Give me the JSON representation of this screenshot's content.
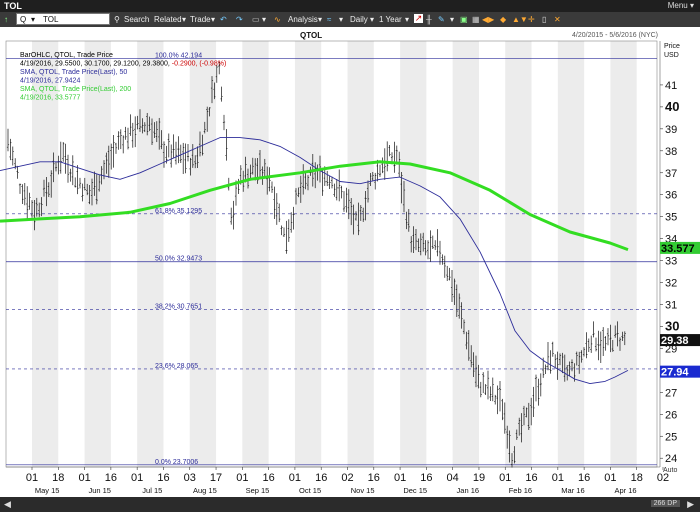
{
  "window": {
    "title": "TOL",
    "menu_label": "Menu"
  },
  "toolbar": {
    "symbol_prefix": "Q",
    "symbol": "TOL",
    "search": "Search",
    "related": "Related",
    "trade": "Trade",
    "analysis": "Analysis",
    "interval": "Daily",
    "range": "1 Year"
  },
  "chart_data": {
    "type": "ohlc",
    "symbol": "QTOL",
    "date_range": "4/20/2015 - 5/6/2016 (NYC)",
    "price_axis_label": "Price\nUSD",
    "ylim": [
      23.6,
      43.0
    ],
    "y_ticks": [
      24,
      25,
      26,
      27,
      28,
      29,
      30,
      31,
      32,
      33,
      34,
      35,
      36,
      37,
      38,
      39,
      40,
      41
    ],
    "y_ticks_major": [
      30,
      40
    ],
    "y_auto_label": "Auto",
    "day_ticks": [
      "01",
      "18",
      "01",
      "16",
      "01",
      "16",
      "03",
      "17",
      "01",
      "16",
      "01",
      "16",
      "02",
      "16",
      "01",
      "16",
      "04",
      "19",
      "01",
      "16",
      "01",
      "16",
      "01",
      "18",
      "02"
    ],
    "month_labels": [
      "May 15",
      "Jun 15",
      "Jul 15",
      "Aug 15",
      "Sep 15",
      "Oct 15",
      "Nov 15",
      "Dec 15",
      "Jan 16",
      "Feb 16",
      "Mar 16",
      "Apr 16"
    ],
    "legend": [
      {
        "text": "BarOHLC, QTOL, Trade Price",
        "color": "#000000"
      },
      {
        "text": "4/19/2016, 29.5500, 30.1700, 29.1200, 29.3800,",
        "color": "#000000",
        "extra": " -0.2900, (-0.98%)",
        "extra_color": "#cc0000"
      },
      {
        "text": "SMA, QTOL, Trade Price(Last), 50",
        "color": "#2d2d9a"
      },
      {
        "text": "4/19/2016, 27.9424",
        "color": "#2d2d9a"
      },
      {
        "text": "SMA, QTOL, Trade Price(Last), 200",
        "color": "#33cc33"
      },
      {
        "text": "4/19/2016, 33.5777",
        "color": "#33cc33"
      }
    ],
    "fib_levels": [
      {
        "pct": "100.0%",
        "value": 42.194,
        "label": "42.194",
        "style": "solid"
      },
      {
        "pct": "61.8%",
        "value": 35.1295,
        "label": "35.1295",
        "style": "dashed"
      },
      {
        "pct": "50.0%",
        "value": 32.9473,
        "label": "32.9473",
        "style": "solid"
      },
      {
        "pct": "38.2%",
        "value": 30.7651,
        "label": "30.7651",
        "style": "dashed"
      },
      {
        "pct": "23.6%",
        "value": 28.065,
        "label": "28.065",
        "style": "dashed"
      },
      {
        "pct": "0.0%",
        "value": 23.7006,
        "label": "23.7006",
        "style": "solid"
      }
    ],
    "last_price_tags": [
      {
        "label": "33.577",
        "value": 33.5777,
        "bg": "#33cc33",
        "fg": "#000000"
      },
      {
        "label": "29.38",
        "value": 29.38,
        "bg": "#111111",
        "fg": "#ffffff"
      },
      {
        "label": "27.94",
        "value": 27.9424,
        "bg": "#1a2ad0",
        "fg": "#ffffff"
      }
    ],
    "sma200": {
      "color": "#33dd22",
      "points": [
        [
          0,
          34.8
        ],
        [
          40,
          34.9
        ],
        [
          80,
          35.0
        ],
        [
          130,
          35.2
        ],
        [
          170,
          35.6
        ],
        [
          210,
          36.2
        ],
        [
          250,
          36.7
        ],
        [
          300,
          37.0
        ],
        [
          340,
          37.3
        ],
        [
          380,
          37.5
        ],
        [
          410,
          37.4
        ],
        [
          450,
          37.0
        ],
        [
          490,
          36.2
        ],
        [
          530,
          35.1
        ],
        [
          570,
          34.3
        ],
        [
          610,
          33.8
        ],
        [
          628,
          33.5
        ]
      ]
    },
    "sma50": {
      "color": "#2d2d9a",
      "points": [
        [
          0,
          37.1
        ],
        [
          20,
          37.3
        ],
        [
          40,
          37.5
        ],
        [
          60,
          37.5
        ],
        [
          80,
          37.2
        ],
        [
          100,
          36.9
        ],
        [
          120,
          36.7
        ],
        [
          140,
          37.0
        ],
        [
          160,
          37.4
        ],
        [
          180,
          37.8
        ],
        [
          200,
          38.2
        ],
        [
          220,
          38.6
        ],
        [
          240,
          38.6
        ],
        [
          260,
          38.5
        ],
        [
          280,
          38.2
        ],
        [
          300,
          37.7
        ],
        [
          320,
          37.1
        ],
        [
          340,
          36.6
        ],
        [
          360,
          36.5
        ],
        [
          380,
          36.7
        ],
        [
          400,
          36.8
        ],
        [
          420,
          36.4
        ],
        [
          440,
          35.9
        ],
        [
          460,
          34.9
        ],
        [
          480,
          33.4
        ],
        [
          500,
          31.5
        ],
        [
          515,
          29.8
        ],
        [
          530,
          28.9
        ],
        [
          545,
          28.4
        ],
        [
          560,
          28.0
        ],
        [
          575,
          27.6
        ],
        [
          590,
          27.4
        ],
        [
          605,
          27.5
        ],
        [
          615,
          27.7
        ],
        [
          628,
          28.0
        ]
      ]
    },
    "price_path": [
      [
        8,
        38.5
      ],
      [
        20,
        36.5
      ],
      [
        35,
        35.2
      ],
      [
        50,
        36.5
      ],
      [
        62,
        38.0
      ],
      [
        75,
        36.8
      ],
      [
        90,
        36.0
      ],
      [
        105,
        37.2
      ],
      [
        120,
        38.5
      ],
      [
        135,
        39.0
      ],
      [
        150,
        39.3
      ],
      [
        165,
        38.0
      ],
      [
        180,
        37.8
      ],
      [
        195,
        37.5
      ],
      [
        205,
        39.0
      ],
      [
        215,
        41.2
      ],
      [
        220,
        41.8
      ],
      [
        226,
        38.5
      ],
      [
        232,
        34.8
      ],
      [
        240,
        36.8
      ],
      [
        255,
        37.2
      ],
      [
        270,
        36.8
      ],
      [
        285,
        34.0
      ],
      [
        300,
        36.2
      ],
      [
        315,
        37.0
      ],
      [
        330,
        36.8
      ],
      [
        345,
        35.8
      ],
      [
        358,
        34.5
      ],
      [
        370,
        36.5
      ],
      [
        385,
        37.6
      ],
      [
        397,
        37.8
      ],
      [
        405,
        35.5
      ],
      [
        412,
        33.8
      ],
      [
        425,
        33.5
      ],
      [
        440,
        33.5
      ],
      [
        452,
        32.0
      ],
      [
        465,
        29.8
      ],
      [
        478,
        27.5
      ],
      [
        492,
        26.9
      ],
      [
        502,
        26.5
      ],
      [
        512,
        24.2
      ],
      [
        520,
        25.2
      ],
      [
        530,
        26.2
      ],
      [
        540,
        27.5
      ],
      [
        552,
        28.8
      ],
      [
        565,
        27.8
      ],
      [
        578,
        28.3
      ],
      [
        592,
        29.6
      ],
      [
        605,
        29.1
      ],
      [
        615,
        29.5
      ],
      [
        626,
        29.4
      ]
    ]
  },
  "bottom": {
    "interval_tag": "266 DP"
  }
}
